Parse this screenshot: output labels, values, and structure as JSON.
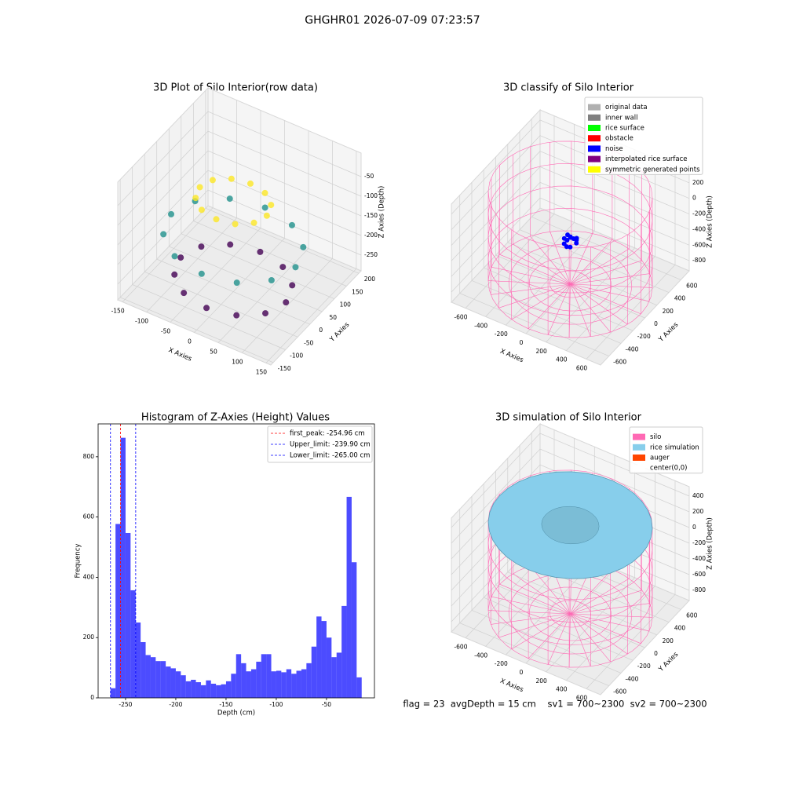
{
  "title": "GHGHR01 2026-07-09 07:23:57",
  "footer": "flag = 23  avgDepth = 15 cm    sv1 = 700~2300  sv2 = 700~2300",
  "chart_data": [
    {
      "type": "scatter3d",
      "title": "3D Plot of Silo Interior(row data)",
      "xlabel": "X Axies",
      "ylabel": "Y Axies",
      "zlabel": "Z Axies (Depth)",
      "xlim": [
        -160,
        160
      ],
      "ylim": [
        -160,
        210
      ],
      "zlim": [
        -290,
        10
      ],
      "xticks": [
        -150,
        -100,
        -50,
        0,
        50,
        100,
        150
      ],
      "yticks": [
        -150,
        -100,
        -50,
        0,
        50,
        100,
        150,
        200
      ],
      "zticks": [
        -250,
        -200,
        -150,
        -100,
        -50
      ],
      "grid": true,
      "colormap": "viridis",
      "x": [
        110,
        95,
        55,
        0,
        -55,
        -95,
        -110,
        -95,
        -55,
        0,
        55,
        95,
        130,
        113,
        65,
        0,
        -65,
        -113,
        -130,
        -113,
        -65,
        0,
        65,
        113,
        70,
        61,
        35,
        0,
        -35,
        -61,
        -70,
        -61,
        -35,
        0,
        35,
        61
      ],
      "y": [
        0,
        55,
        95,
        110,
        95,
        55,
        0,
        -55,
        -95,
        -110,
        -95,
        -55,
        0,
        65,
        113,
        130,
        113,
        65,
        0,
        -65,
        -113,
        -130,
        -113,
        -65,
        0,
        35,
        61,
        70,
        61,
        35,
        0,
        -35,
        -61,
        -70,
        -61,
        -35
      ],
      "z": [
        -260,
        -260,
        -260,
        -260,
        -260,
        -260,
        -260,
        -260,
        -260,
        -260,
        -260,
        -260,
        -160,
        -160,
        -160,
        -160,
        -160,
        -160,
        -160,
        -160,
        -160,
        -160,
        -160,
        -160,
        -60,
        -60,
        -60,
        -60,
        -60,
        -60,
        -60,
        -60,
        -60,
        -60,
        -60,
        -60
      ]
    },
    {
      "type": "silo3d",
      "title": "3D classify of Silo Interior",
      "xlabel": "X Axies",
      "ylabel": "Y Axies",
      "zlabel": "Z Axies (Depth)",
      "xlim": [
        -740,
        740
      ],
      "ylim": [
        -740,
        740
      ],
      "zlim": [
        -930,
        330
      ],
      "xticks": [
        -600,
        -400,
        -200,
        0,
        200,
        400,
        600
      ],
      "yticks": [
        -600,
        -400,
        -200,
        0,
        200,
        400,
        600
      ],
      "zticks": [
        -800,
        -600,
        -400,
        -200,
        0,
        200
      ],
      "grid": true,
      "silo": {
        "radius": 700,
        "top": 250,
        "bottom": -900,
        "color": "#ff69b4"
      },
      "noise": {
        "color": "#0000ff",
        "x": [
          60,
          30,
          -30,
          -60,
          -30,
          30,
          0,
          20,
          -20,
          45,
          -45,
          0
        ],
        "y": [
          0,
          52,
          52,
          0,
          -52,
          -52,
          0,
          20,
          -20,
          30,
          30,
          -60
        ],
        "z": [
          -340,
          -360,
          -350,
          -345,
          -355,
          -365,
          -300,
          -320,
          -330,
          -310,
          -315,
          -370
        ]
      },
      "legend_loc": "upper right",
      "legend": [
        {
          "name": "original data",
          "color": "#b0b0b0"
        },
        {
          "name": "inner wall",
          "color": "#808080"
        },
        {
          "name": "rice surface",
          "color": "#00ff00"
        },
        {
          "name": "obstacle",
          "color": "#ff0000"
        },
        {
          "name": "noise",
          "color": "#0000ff"
        },
        {
          "name": "interpolated rice surface",
          "color": "#800080"
        },
        {
          "name": "symmetric generated points",
          "color": "#ffff00"
        }
      ]
    },
    {
      "type": "histogram",
      "title": "Histogram of Z-Axies (Height) Values",
      "xlabel": "Depth (cm)",
      "ylabel": "Frequency",
      "xlim": [
        -277.3,
        -2.3
      ],
      "ylim": [
        0,
        909
      ],
      "xticks": [
        -250,
        -200,
        -150,
        -100,
        -50
      ],
      "yticks": [
        0,
        200,
        400,
        600,
        800
      ],
      "color": "#0000ff",
      "bins": [
        -265,
        -260,
        -255,
        -250,
        -245,
        -240,
        -235,
        -230,
        -225,
        -220,
        -215,
        -210,
        -205,
        -200,
        -195,
        -190,
        -185,
        -180,
        -175,
        -170,
        -165,
        -160,
        -155,
        -150,
        -145,
        -140,
        -135,
        -130,
        -125,
        -120,
        -115,
        -110,
        -105,
        -100,
        -95,
        -90,
        -85,
        -80,
        -75,
        -70,
        -65,
        -60,
        -55,
        -50,
        -45,
        -40,
        -35,
        -30,
        -25,
        -20,
        -15
      ],
      "counts": [
        32,
        577,
        863,
        547,
        357,
        250,
        185,
        142,
        135,
        122,
        122,
        104,
        98,
        88,
        75,
        55,
        60,
        52,
        42,
        58,
        47,
        42,
        45,
        55,
        80,
        145,
        115,
        88,
        95,
        120,
        145,
        145,
        88,
        90,
        85,
        95,
        80,
        90,
        95,
        115,
        170,
        270,
        255,
        200,
        135,
        150,
        305,
        667,
        450,
        68
      ],
      "legend_loc": "upper right",
      "lines": [
        {
          "value": -254.96,
          "label": "first_peak: -254.96 cm",
          "color": "#ff0000"
        },
        {
          "value": -239.9,
          "label": "Upper_limit: -239.90 cm",
          "color": "#0000ff"
        },
        {
          "value": -265.0,
          "label": "Lower_limit: -265.00 cm",
          "color": "#0000ff"
        }
      ]
    },
    {
      "type": "silo3d",
      "title": "3D simulation of Silo Interior",
      "xlabel": "X Axies",
      "ylabel": "Y Axies",
      "zlabel": "Z Axies (Depth)",
      "xlim": [
        -740,
        740
      ],
      "ylim": [
        -740,
        740
      ],
      "zlim": [
        -930,
        520
      ],
      "xticks": [
        -600,
        -400,
        -200,
        0,
        200,
        400,
        600
      ],
      "yticks": [
        -600,
        -400,
        -200,
        0,
        200,
        400,
        600
      ],
      "zticks": [
        -800,
        -600,
        -400,
        -200,
        0,
        200,
        400
      ],
      "grid": true,
      "silo": {
        "radius": 700,
        "top": 250,
        "bottom": -900,
        "color": "#ff69b4"
      },
      "surface": {
        "z": 230,
        "color": "#87ceeb"
      },
      "legend_loc": "upper right",
      "legend": [
        {
          "name": "silo",
          "color": "#ff69b4"
        },
        {
          "name": "rice simulation",
          "color": "#87ceeb"
        },
        {
          "name": "auger",
          "color": "#ff4500"
        },
        {
          "name": "center(0,0)",
          "color": "#ffffff"
        }
      ]
    }
  ]
}
